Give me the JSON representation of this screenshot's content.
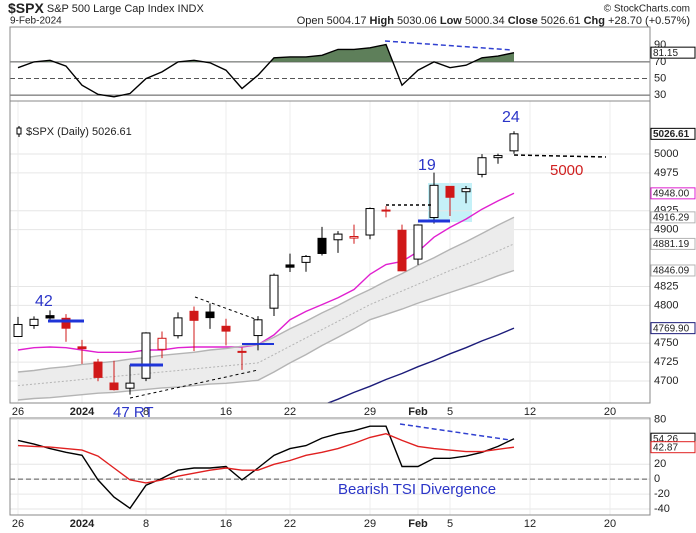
{
  "header": {
    "symbol": "$SPX",
    "name": "S&P 500 Large Cap Index INDX",
    "date": "9-Feb-2024",
    "credit": "© StockCharts.com",
    "quote": [
      {
        "label": "Open",
        "value": "5004.17"
      },
      {
        "label": "High",
        "value": "5030.06"
      },
      {
        "label": "Low",
        "value": "5000.34"
      },
      {
        "label": "Close",
        "value": "5026.61"
      },
      {
        "label": "Chg",
        "value": "+28.70 (+0.57%)"
      }
    ]
  },
  "chart_data": [
    {
      "type": "line",
      "x": [
        0,
        1,
        2,
        3,
        4,
        5,
        6,
        7,
        8,
        9,
        10,
        11,
        12,
        13,
        14,
        15,
        16,
        17,
        18,
        19,
        20,
        21,
        22,
        23,
        24,
        25,
        26,
        27,
        28,
        29,
        30,
        31
      ],
      "xlim": [
        -0.5,
        39.5
      ],
      "ylim": [
        23,
        112
      ],
      "yticks": [
        30,
        50,
        70,
        90
      ],
      "ref_lines": [
        70,
        50,
        30
      ],
      "ref_styles": [
        "solid",
        "dashed",
        "solid"
      ],
      "fill_above": 70,
      "fill_color": "#5e7f5a",
      "series": [
        {
          "color": "#000000",
          "values": [
            63,
            70,
            72,
            65,
            42,
            31,
            28,
            32,
            50,
            58,
            70,
            72,
            69,
            60,
            38,
            54,
            75,
            76,
            76,
            78,
            85,
            85,
            87,
            91,
            42,
            60,
            70,
            63,
            66,
            75,
            77,
            81.15
          ]
        }
      ]
    },
    {
      "type": "candlestick",
      "legend": "$SPX (Daily) 5026.61",
      "x": [
        0,
        1,
        2,
        3,
        4,
        5,
        6,
        7,
        8,
        9,
        10,
        11,
        12,
        13,
        14,
        15,
        16,
        17,
        18,
        19,
        20,
        21,
        22,
        23,
        24,
        25,
        26,
        27,
        28,
        29,
        30,
        31
      ],
      "open": [
        4758.86,
        4773.45,
        4786.44,
        4782.88,
        4745.2,
        4725.07,
        4697.42,
        4690.57,
        4703.7,
        4741.93,
        4759.94,
        4792.13,
        4791.18,
        4772.35,
        4739.13,
        4760.1,
        4796.28,
        4853.42,
        4856.8,
        4888.56,
        4886.66,
        4888.91,
        4892.95,
        4925.89,
        4899.19,
        4861.11,
        4916.06,
        4957.19,
        4950.16,
        4973.05,
        4995.16,
        5004.17
      ],
      "high": [
        4784.72,
        4785.39,
        4793.3,
        4788.43,
        4754.33,
        4729.29,
        4726.78,
        4721.49,
        4764.54,
        4765.47,
        4790.8,
        4798.5,
        4802.4,
        4782.34,
        4744.23,
        4785.79,
        4842.07,
        4868.41,
        4866.48,
        4903.68,
        4898.15,
        4906.69,
        4929.31,
        4931.09,
        4906.75,
        4906.97,
        4975.29,
        4957.19,
        4957.77,
        4999.89,
        5000.4,
        5030.06
      ],
      "low": [
        4758.45,
        4768.9,
        4780.98,
        4751.99,
        4722.67,
        4699.71,
        4687.53,
        4682.11,
        4699.82,
        4730.35,
        4756.2,
        4739.58,
        4768.98,
        4747.12,
        4714.82,
        4740.57,
        4785.87,
        4844.05,
        4844.37,
        4865.94,
        4869.34,
        4881.47,
        4887.4,
        4916.27,
        4845.15,
        4853.52,
        4907.99,
        4918.09,
        4934.88,
        4969.05,
        4987.09,
        5000.34
      ],
      "close": [
        4774.75,
        4781.58,
        4783.35,
        4769.83,
        4742.83,
        4704.81,
        4688.68,
        4697.24,
        4763.54,
        4756.5,
        4783.45,
        4780.24,
        4783.83,
        4765.98,
        4739.21,
        4780.94,
        4839.81,
        4850.43,
        4864.6,
        4868.55,
        4894.16,
        4890.97,
        4927.93,
        4924.97,
        4845.65,
        4906.19,
        4958.61,
        4942.81,
        4954.23,
        4995.06,
        4997.91,
        5026.61
      ],
      "up_color": "#000000",
      "down_color": "#d01818",
      "xlim": [
        -0.5,
        39.5
      ],
      "xticks": [
        {
          "value": 0,
          "label": "26"
        },
        {
          "value": 4,
          "label": "2024"
        },
        {
          "value": 8,
          "label": "8"
        },
        {
          "value": 13,
          "label": "16"
        },
        {
          "value": 17,
          "label": "22"
        },
        {
          "value": 22,
          "label": "29"
        },
        {
          "value": 25,
          "label": "Feb"
        },
        {
          "value": 27,
          "label": "5"
        },
        {
          "value": 32,
          "label": "12"
        },
        {
          "value": 37,
          "label": "20"
        }
      ],
      "ylim": [
        4671,
        5070
      ],
      "yticks": [
        4700,
        4725,
        4750,
        4800,
        4825,
        4900,
        4925,
        4975,
        5000
      ],
      "grid": true,
      "band_fill": "#ececec",
      "series": [
        {
          "color": "#e020d0",
          "values": [
            4741,
            4744,
            4745,
            4744,
            4741,
            4738,
            4738,
            4738,
            4741,
            4741,
            4744,
            4745,
            4745,
            4745,
            4745,
            4748,
            4761,
            4781,
            4792,
            4801,
            4810,
            4821,
            4841,
            4854,
            4858,
            4871,
            4890,
            4903,
            4914,
            4927,
            4938,
            4948
          ],
          "last_label": "4948.00"
        },
        {
          "color": "#b4b4b4",
          "values": [
            4712,
            4714,
            4717,
            4719,
            4722,
            4724,
            4726,
            4729,
            4731,
            4734,
            4736,
            4738,
            4741,
            4743,
            4746,
            4748,
            4758,
            4769,
            4779,
            4790,
            4800,
            4811,
            4821,
            4832,
            4842,
            4853,
            4863,
            4874,
            4884,
            4895,
            4906,
            4916.29
          ]
        },
        {
          "color": "#b4b4b4",
          "dash": true,
          "values": [
            4694,
            4696,
            4698,
            4700,
            4702,
            4704,
            4706,
            4708,
            4710,
            4712,
            4714,
            4716,
            4718,
            4720,
            4722,
            4724,
            4735,
            4746,
            4757,
            4768,
            4779,
            4790,
            4801,
            4810,
            4819,
            4828,
            4837,
            4846,
            4854,
            4863,
            4872,
            4881.19
          ]
        },
        {
          "color": "#b4b4b4",
          "values": [
            4675,
            4677,
            4678,
            4680,
            4682,
            4684,
            4685,
            4687,
            4689,
            4691,
            4692,
            4694,
            4696,
            4697,
            4699,
            4701,
            4712,
            4724,
            4735,
            4747,
            4758,
            4769,
            4781,
            4788,
            4795,
            4803,
            4810,
            4817,
            4824,
            4831,
            4839,
            4846.09
          ]
        },
        {
          "color": "#1c1c7a",
          "values": [
            null,
            null,
            null,
            null,
            null,
            null,
            null,
            null,
            null,
            null,
            null,
            null,
            null,
            null,
            null,
            null,
            null,
            null,
            null,
            4668,
            4676,
            4685,
            4693,
            4702,
            4710,
            4719,
            4727,
            4736,
            4744,
            4753,
            4761,
            4769.9
          ],
          "last_label": "4769.90"
        }
      ],
      "annotations": [
        {
          "text": "42"
        },
        {
          "text": "47 RT"
        },
        {
          "text": "19"
        },
        {
          "text": "24"
        },
        {
          "text": "5000"
        }
      ]
    },
    {
      "type": "line",
      "x": [
        0,
        1,
        2,
        3,
        4,
        5,
        6,
        7,
        8,
        9,
        10,
        11,
        12,
        13,
        14,
        15,
        16,
        17,
        18,
        19,
        20,
        21,
        22,
        23,
        24,
        25,
        26,
        27,
        28,
        29,
        30,
        31
      ],
      "xlim": [
        -0.5,
        39.5
      ],
      "xticks": [
        {
          "value": 0,
          "label": "26"
        },
        {
          "value": 4,
          "label": "2024"
        },
        {
          "value": 8,
          "label": "8"
        },
        {
          "value": 13,
          "label": "16"
        },
        {
          "value": 17,
          "label": "22"
        },
        {
          "value": 22,
          "label": "29"
        },
        {
          "value": 25,
          "label": "Feb"
        },
        {
          "value": 27,
          "label": "5"
        },
        {
          "value": 32,
          "label": "12"
        },
        {
          "value": 37,
          "label": "20"
        }
      ],
      "ylim": [
        -48,
        82
      ],
      "yticks": [
        -40,
        -20,
        0,
        20,
        80
      ],
      "grid": true,
      "ref_lines": [
        0
      ],
      "ref_styles": [
        "dashed"
      ],
      "series": [
        {
          "color": "#000000",
          "values": [
            52,
            47,
            41,
            36,
            32,
            -1,
            -24,
            -39,
            -8,
            1,
            12,
            15,
            15,
            17,
            -1,
            15,
            32,
            41,
            45,
            55,
            61,
            65,
            71,
            71,
            17,
            17,
            28,
            28,
            31,
            36,
            44,
            54.26
          ]
        },
        {
          "color": "#e02020",
          "values": [
            45,
            44,
            43,
            41,
            39,
            31,
            15,
            -1,
            -5,
            -1,
            4,
            8,
            12,
            15,
            12,
            12,
            20,
            25,
            32,
            36,
            41,
            48,
            56,
            61,
            52,
            44,
            41,
            39,
            37,
            37,
            40,
            42.87
          ]
        }
      ],
      "annotations": [
        {
          "text": "Bearish TSI Divergence"
        }
      ]
    }
  ]
}
